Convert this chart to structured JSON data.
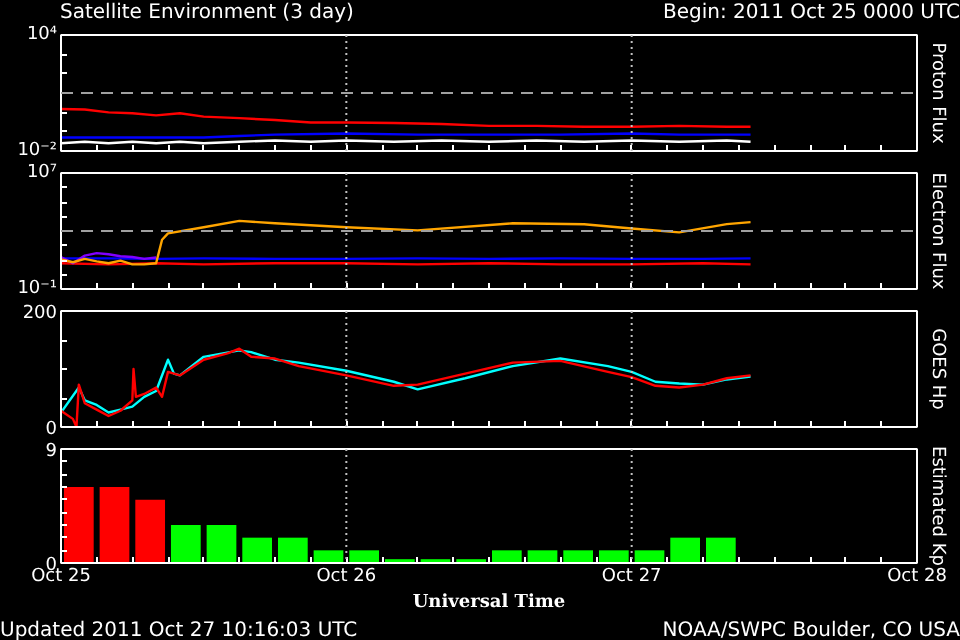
{
  "chart_data": [
    {
      "type": "line",
      "title": "Satellite Environment (3 day)",
      "subtitle": "Begin:  2011 Oct 25 0000 UTC",
      "ylabel": "Proton Flux",
      "log": "y",
      "tick_labels": "y",
      "grid": false,
      "xlim": [
        "2011-10-25T00:00",
        "2011-10-28T00:00"
      ],
      "xticks": [
        {
          "value": "2011-10-25T00:00",
          "label": null
        },
        {
          "value": "2011-10-25T03:00",
          "label": null
        },
        {
          "value": "2011-10-25T06:00",
          "label": null
        },
        {
          "value": "2011-10-25T09:00",
          "label": null
        },
        {
          "value": "2011-10-25T12:00",
          "label": null
        },
        {
          "value": "2011-10-25T15:00",
          "label": null
        },
        {
          "value": "2011-10-25T18:00",
          "label": null
        },
        {
          "value": "2011-10-25T21:00",
          "label": null
        },
        {
          "value": "2011-10-26T00:00",
          "label": null
        },
        {
          "value": "2011-10-26T03:00",
          "label": null
        },
        {
          "value": "2011-10-26T06:00",
          "label": null
        },
        {
          "value": "2011-10-26T09:00",
          "label": null
        },
        {
          "value": "2011-10-26T12:00",
          "label": null
        },
        {
          "value": "2011-10-26T15:00",
          "label": null
        },
        {
          "value": "2011-10-26T18:00",
          "label": null
        },
        {
          "value": "2011-10-26T21:00",
          "label": null
        },
        {
          "value": "2011-10-27T00:00",
          "label": null
        },
        {
          "value": "2011-10-27T03:00",
          "label": null
        },
        {
          "value": "2011-10-27T06:00",
          "label": null
        },
        {
          "value": "2011-10-27T09:00",
          "label": null
        },
        {
          "value": "2011-10-27T12:00",
          "label": null
        },
        {
          "value": "2011-10-27T15:00",
          "label": null
        },
        {
          "value": "2011-10-27T18:00",
          "label": null
        },
        {
          "value": "2011-10-27T21:00",
          "label": null
        },
        {
          "value": "2011-10-28T00:00",
          "label": null
        }
      ],
      "ylim": [
        0.01,
        10000
      ],
      "yticks": [
        {
          "value": 0.01,
          "label": "10⁻²"
        },
        {
          "value": 0.1,
          "label": null
        },
        {
          "value": 1,
          "label": null
        },
        {
          "value": 10,
          "label": null
        },
        {
          "value": 100,
          "label": null
        },
        {
          "value": 1000,
          "label": null
        },
        {
          "value": 10000,
          "label": "10⁴"
        }
      ],
      "ref_lines": [
        {
          "axis": "y",
          "value": 10,
          "color": "#a0a0a0",
          "line_style": "dashed"
        },
        {
          "axis": "x",
          "value": "2011-10-26T00:00",
          "color": "#c0c0c0",
          "line_style": "dotted"
        },
        {
          "axis": "x",
          "value": "2011-10-27T00:00",
          "color": "#c0c0c0",
          "line_style": "dotted"
        }
      ],
      "series": [
        {
          "color": "#ffffff",
          "x": [
            "2011-10-25T00:00",
            "2011-10-25T02:00",
            "2011-10-25T04:00",
            "2011-10-25T06:00",
            "2011-10-25T08:00",
            "2011-10-25T10:00",
            "2011-10-25T12:00",
            "2011-10-25T15:00",
            "2011-10-25T18:00",
            "2011-10-25T21:00",
            "2011-10-26T00:00",
            "2011-10-26T04:00",
            "2011-10-26T08:00",
            "2011-10-26T12:00",
            "2011-10-26T16:00",
            "2011-10-26T20:00",
            "2011-10-27T00:00",
            "2011-10-27T04:00",
            "2011-10-27T08:00",
            "2011-10-27T10:00"
          ],
          "values": [
            0.025,
            0.03,
            0.025,
            0.03,
            0.025,
            0.03,
            0.025,
            0.03,
            0.035,
            0.03,
            0.035,
            0.03,
            0.035,
            0.03,
            0.035,
            0.03,
            0.035,
            0.03,
            0.035,
            0.03
          ]
        },
        {
          "color": "#0000ff",
          "x": [
            "2011-10-25T00:00",
            "2011-10-25T06:00",
            "2011-10-25T12:00",
            "2011-10-25T15:00",
            "2011-10-25T18:00",
            "2011-10-26T00:00",
            "2011-10-26T06:00",
            "2011-10-26T12:00",
            "2011-10-26T18:00",
            "2011-10-27T00:00",
            "2011-10-27T04:00",
            "2011-10-27T10:00"
          ],
          "values": [
            0.05,
            0.05,
            0.05,
            0.06,
            0.07,
            0.08,
            0.07,
            0.07,
            0.07,
            0.08,
            0.07,
            0.07
          ]
        },
        {
          "color": "#ff0000",
          "x": [
            "2011-10-25T00:00",
            "2011-10-25T02:00",
            "2011-10-25T04:00",
            "2011-10-25T06:00",
            "2011-10-25T08:00",
            "2011-10-25T10:00",
            "2011-10-25T12:00",
            "2011-10-25T15:00",
            "2011-10-25T18:00",
            "2011-10-25T21:00",
            "2011-10-26T00:00",
            "2011-10-26T04:00",
            "2011-10-26T08:00",
            "2011-10-26T12:00",
            "2011-10-26T16:00",
            "2011-10-26T20:00",
            "2011-10-27T00:00",
            "2011-10-27T04:00",
            "2011-10-27T08:00",
            "2011-10-27T10:00"
          ],
          "values": [
            1.5,
            1.4,
            1.0,
            0.9,
            0.7,
            0.9,
            0.6,
            0.5,
            0.4,
            0.3,
            0.3,
            0.28,
            0.25,
            0.2,
            0.2,
            0.18,
            0.18,
            0.2,
            0.18,
            0.18
          ]
        }
      ]
    },
    {
      "type": "line",
      "ylabel": "Electron Flux",
      "log": "y",
      "tick_labels": "y",
      "grid": false,
      "xlim": [
        "2011-10-25T00:00",
        "2011-10-28T00:00"
      ],
      "xticks": [
        {
          "value": "2011-10-25T00:00",
          "label": null
        },
        {
          "value": "2011-10-25T03:00",
          "label": null
        },
        {
          "value": "2011-10-25T06:00",
          "label": null
        },
        {
          "value": "2011-10-25T09:00",
          "label": null
        },
        {
          "value": "2011-10-25T12:00",
          "label": null
        },
        {
          "value": "2011-10-25T15:00",
          "label": null
        },
        {
          "value": "2011-10-25T18:00",
          "label": null
        },
        {
          "value": "2011-10-25T21:00",
          "label": null
        },
        {
          "value": "2011-10-26T00:00",
          "label": null
        },
        {
          "value": "2011-10-26T03:00",
          "label": null
        },
        {
          "value": "2011-10-26T06:00",
          "label": null
        },
        {
          "value": "2011-10-26T09:00",
          "label": null
        },
        {
          "value": "2011-10-26T12:00",
          "label": null
        },
        {
          "value": "2011-10-26T15:00",
          "label": null
        },
        {
          "value": "2011-10-26T18:00",
          "label": null
        },
        {
          "value": "2011-10-26T21:00",
          "label": null
        },
        {
          "value": "2011-10-27T00:00",
          "label": null
        },
        {
          "value": "2011-10-27T03:00",
          "label": null
        },
        {
          "value": "2011-10-27T06:00",
          "label": null
        },
        {
          "value": "2011-10-27T09:00",
          "label": null
        },
        {
          "value": "2011-10-27T12:00",
          "label": null
        },
        {
          "value": "2011-10-27T15:00",
          "label": null
        },
        {
          "value": "2011-10-27T18:00",
          "label": null
        },
        {
          "value": "2011-10-27T21:00",
          "label": null
        },
        {
          "value": "2011-10-28T00:00",
          "label": null
        }
      ],
      "ylim": [
        0.1,
        10000000
      ],
      "yticks": [
        {
          "value": 0.1,
          "label": "10⁻¹"
        },
        {
          "value": 1,
          "label": null
        },
        {
          "value": 10,
          "label": null
        },
        {
          "value": 100,
          "label": null
        },
        {
          "value": 1000,
          "label": null
        },
        {
          "value": 10000,
          "label": null
        },
        {
          "value": 100000,
          "label": null
        },
        {
          "value": 1000000,
          "label": null
        },
        {
          "value": 10000000,
          "label": "10⁷"
        }
      ],
      "ref_lines": [
        {
          "axis": "y",
          "value": 1000,
          "color": "#a0a0a0",
          "line_style": "dashed"
        },
        {
          "axis": "x",
          "value": "2011-10-26T00:00",
          "color": "#c0c0c0",
          "line_style": "dotted"
        },
        {
          "axis": "x",
          "value": "2011-10-27T00:00",
          "color": "#c0c0c0",
          "line_style": "dotted"
        }
      ],
      "series": [
        {
          "color": "#0000ff",
          "x": [
            "2011-10-25T00:00",
            "2011-10-25T04:00",
            "2011-10-25T08:00",
            "2011-10-25T12:00",
            "2011-10-25T18:00",
            "2011-10-26T00:00",
            "2011-10-26T06:00",
            "2011-10-26T12:00",
            "2011-10-26T18:00",
            "2011-10-27T00:00",
            "2011-10-27T06:00",
            "2011-10-27T10:00"
          ],
          "values": [
            13,
            13,
            12,
            13,
            12,
            12,
            13,
            12,
            13,
            12,
            12,
            13
          ]
        },
        {
          "color": "#ff0000",
          "x": [
            "2011-10-25T00:00",
            "2011-10-25T04:00",
            "2011-10-25T08:00",
            "2011-10-25T12:00",
            "2011-10-25T18:00",
            "2011-10-26T00:00",
            "2011-10-26T06:00",
            "2011-10-26T12:00",
            "2011-10-26T18:00",
            "2011-10-27T00:00",
            "2011-10-27T06:00",
            "2011-10-27T10:00"
          ],
          "values": [
            6,
            5,
            6,
            5,
            6,
            6,
            5,
            6,
            5,
            5,
            6,
            5
          ]
        },
        {
          "color": "#8000ff",
          "x": [
            "2011-10-25T00:00",
            "2011-10-25T01:00",
            "2011-10-25T02:00",
            "2011-10-25T03:00",
            "2011-10-25T04:00",
            "2011-10-25T05:00",
            "2011-10-25T06:00",
            "2011-10-25T07:00",
            "2011-10-25T08:00"
          ],
          "values": [
            16,
            6,
            20,
            30,
            25,
            18,
            16,
            12,
            15
          ]
        },
        {
          "color": "#ffa500",
          "x": [
            "2011-10-25T00:00",
            "2011-10-25T01:00",
            "2011-10-25T02:00",
            "2011-10-25T03:00",
            "2011-10-25T04:00",
            "2011-10-25T05:00",
            "2011-10-25T06:00",
            "2011-10-25T07:00",
            "2011-10-25T08:00",
            "2011-10-25T08:30",
            "2011-10-25T09:00",
            "2011-10-25T12:00",
            "2011-10-25T15:00",
            "2011-10-25T18:00",
            "2011-10-26T00:00",
            "2011-10-26T06:00",
            "2011-10-26T14:00",
            "2011-10-26T20:00",
            "2011-10-27T00:00",
            "2011-10-27T04:00",
            "2011-10-27T08:00",
            "2011-10-27T10:00"
          ],
          "values": [
            11,
            7,
            12,
            8,
            6,
            9,
            5,
            5,
            6,
            250,
            680,
            1800,
            5000,
            3400,
            1800,
            1100,
            3400,
            2900,
            1500,
            800,
            3000,
            4100
          ]
        }
      ]
    },
    {
      "type": "line",
      "ylabel": "GOES Hp",
      "tick_labels": "y",
      "grid": false,
      "xlim": [
        "2011-10-25T00:00",
        "2011-10-28T00:00"
      ],
      "xticks": [
        {
          "value": "2011-10-25T00:00",
          "label": null
        },
        {
          "value": "2011-10-25T03:00",
          "label": null
        },
        {
          "value": "2011-10-25T06:00",
          "label": null
        },
        {
          "value": "2011-10-25T09:00",
          "label": null
        },
        {
          "value": "2011-10-25T12:00",
          "label": null
        },
        {
          "value": "2011-10-25T15:00",
          "label": null
        },
        {
          "value": "2011-10-25T18:00",
          "label": null
        },
        {
          "value": "2011-10-25T21:00",
          "label": null
        },
        {
          "value": "2011-10-26T00:00",
          "label": null
        },
        {
          "value": "2011-10-26T03:00",
          "label": null
        },
        {
          "value": "2011-10-26T06:00",
          "label": null
        },
        {
          "value": "2011-10-26T09:00",
          "label": null
        },
        {
          "value": "2011-10-26T12:00",
          "label": null
        },
        {
          "value": "2011-10-26T15:00",
          "label": null
        },
        {
          "value": "2011-10-26T18:00",
          "label": null
        },
        {
          "value": "2011-10-26T21:00",
          "label": null
        },
        {
          "value": "2011-10-27T00:00",
          "label": null
        },
        {
          "value": "2011-10-27T03:00",
          "label": null
        },
        {
          "value": "2011-10-27T06:00",
          "label": null
        },
        {
          "value": "2011-10-27T09:00",
          "label": null
        },
        {
          "value": "2011-10-27T12:00",
          "label": null
        },
        {
          "value": "2011-10-27T15:00",
          "label": null
        },
        {
          "value": "2011-10-27T18:00",
          "label": null
        },
        {
          "value": "2011-10-27T21:00",
          "label": null
        },
        {
          "value": "2011-10-28T00:00",
          "label": null
        }
      ],
      "ylim": [
        0,
        200
      ],
      "yticks": [
        0,
        {
          "value": 50,
          "label": null
        },
        {
          "value": 100,
          "label": null
        },
        {
          "value": 150,
          "label": null
        },
        200
      ],
      "ref_lines": [
        {
          "axis": "x",
          "value": "2011-10-26T00:00",
          "color": "#c0c0c0",
          "line_style": "dotted"
        },
        {
          "axis": "x",
          "value": "2011-10-27T00:00",
          "color": "#c0c0c0",
          "line_style": "dotted"
        }
      ],
      "series": [
        {
          "color": "#00ffff",
          "x": [
            "2011-10-25T00:00",
            "2011-10-25T01:30",
            "2011-10-25T02:00",
            "2011-10-25T03:00",
            "2011-10-25T04:00",
            "2011-10-25T05:00",
            "2011-10-25T06:00",
            "2011-10-25T07:00",
            "2011-10-25T08:00",
            "2011-10-25T09:00",
            "2011-10-25T09:30",
            "2011-10-25T10:00",
            "2011-10-25T12:00",
            "2011-10-25T15:00",
            "2011-10-25T16:00",
            "2011-10-25T18:00",
            "2011-10-25T20:00",
            "2011-10-26T00:00",
            "2011-10-26T04:00",
            "2011-10-26T06:00",
            "2011-10-26T10:00",
            "2011-10-26T14:00",
            "2011-10-26T18:00",
            "2011-10-26T22:00",
            "2011-10-27T00:00",
            "2011-10-27T02:00",
            "2011-10-27T04:00",
            "2011-10-27T06:00",
            "2011-10-27T08:00",
            "2011-10-27T10:00"
          ],
          "values": [
            25,
            68,
            46,
            38,
            25,
            30,
            35,
            52,
            62,
            116,
            92,
            89,
            121,
            132,
            129,
            116,
            111,
            97,
            78,
            65,
            84,
            105,
            118,
            105,
            95,
            78,
            75,
            73,
            82,
            87
          ]
        },
        {
          "color": "#ff0000",
          "x": [
            "2011-10-25T00:00",
            "2011-10-25T01:00",
            "2011-10-25T01:18",
            "2011-10-25T01:30",
            "2011-10-25T02:00",
            "2011-10-25T03:00",
            "2011-10-25T04:00",
            "2011-10-25T05:00",
            "2011-10-25T06:00",
            "2011-10-25T06:06",
            "2011-10-25T06:18",
            "2011-10-25T07:00",
            "2011-10-25T08:00",
            "2011-10-25T08:30",
            "2011-10-25T09:00",
            "2011-10-25T10:00",
            "2011-10-25T12:00",
            "2011-10-25T14:00",
            "2011-10-25T15:00",
            "2011-10-25T16:00",
            "2011-10-25T18:00",
            "2011-10-25T20:00",
            "2011-10-26T00:00",
            "2011-10-26T04:00",
            "2011-10-26T06:00",
            "2011-10-26T10:00",
            "2011-10-26T14:00",
            "2011-10-26T18:00",
            "2011-10-26T22:00",
            "2011-10-27T00:00",
            "2011-10-27T02:00",
            "2011-10-27T04:00",
            "2011-10-27T06:00",
            "2011-10-27T08:00",
            "2011-10-27T10:00"
          ],
          "values": [
            28,
            14,
            0,
            73,
            41,
            30,
            19,
            28,
            46,
            100,
            52,
            57,
            68,
            52,
            95,
            89,
            116,
            127,
            135,
            121,
            118,
            105,
            89,
            71,
            73,
            92,
            111,
            114,
            95,
            86,
            71,
            68,
            73,
            84,
            89
          ]
        }
      ]
    },
    {
      "type": "bar",
      "ylabel": "Estimated Kp",
      "xlabel": "Universal Time",
      "grid": false,
      "annotations": [
        "Updated 2011 Oct 27 10:16:03 UTC",
        "NOAA/SWPC Boulder, CO USA"
      ],
      "xlim": [
        "2011-10-25T00:00",
        "2011-10-28T00:00"
      ],
      "xticks": [
        {
          "value": "2011-10-25T00:00",
          "label": "Oct 25"
        },
        {
          "value": "2011-10-25T03:00",
          "label": null
        },
        {
          "value": "2011-10-25T06:00",
          "label": null
        },
        {
          "value": "2011-10-25T09:00",
          "label": null
        },
        {
          "value": "2011-10-25T12:00",
          "label": null
        },
        {
          "value": "2011-10-25T15:00",
          "label": null
        },
        {
          "value": "2011-10-25T18:00",
          "label": null
        },
        {
          "value": "2011-10-25T21:00",
          "label": null
        },
        {
          "value": "2011-10-26T00:00",
          "label": "Oct 26"
        },
        {
          "value": "2011-10-26T03:00",
          "label": null
        },
        {
          "value": "2011-10-26T06:00",
          "label": null
        },
        {
          "value": "2011-10-26T09:00",
          "label": null
        },
        {
          "value": "2011-10-26T12:00",
          "label": null
        },
        {
          "value": "2011-10-26T15:00",
          "label": null
        },
        {
          "value": "2011-10-26T18:00",
          "label": null
        },
        {
          "value": "2011-10-26T21:00",
          "label": null
        },
        {
          "value": "2011-10-27T00:00",
          "label": "Oct 27"
        },
        {
          "value": "2011-10-27T03:00",
          "label": null
        },
        {
          "value": "2011-10-27T06:00",
          "label": null
        },
        {
          "value": "2011-10-27T09:00",
          "label": null
        },
        {
          "value": "2011-10-27T12:00",
          "label": null
        },
        {
          "value": "2011-10-27T15:00",
          "label": null
        },
        {
          "value": "2011-10-27T18:00",
          "label": null
        },
        {
          "value": "2011-10-27T21:00",
          "label": null
        },
        {
          "value": "2011-10-28T00:00",
          "label": "Oct 28"
        }
      ],
      "ylim": [
        0,
        9
      ],
      "yticks": [
        0,
        {
          "value": 1,
          "label": null
        },
        {
          "value": 2,
          "label": null
        },
        {
          "value": 3,
          "label": null
        },
        {
          "value": 4,
          "label": null
        },
        {
          "value": 5,
          "label": null
        },
        {
          "value": 6,
          "label": null
        },
        {
          "value": 7,
          "label": null
        },
        {
          "value": 8,
          "label": null
        },
        9
      ],
      "ref_lines": [
        {
          "axis": "x",
          "value": "2011-10-26T00:00",
          "color": "#c0c0c0",
          "line_style": "dotted"
        },
        {
          "axis": "x",
          "value": "2011-10-27T00:00",
          "color": "#c0c0c0",
          "line_style": "dotted"
        }
      ],
      "x": [
        "2011-10-25T01:30",
        "2011-10-25T04:30",
        "2011-10-25T07:30",
        "2011-10-25T10:30",
        "2011-10-25T13:30",
        "2011-10-25T16:30",
        "2011-10-25T19:30",
        "2011-10-25T22:30",
        "2011-10-26T01:30",
        "2011-10-26T04:30",
        "2011-10-26T07:30",
        "2011-10-26T10:30",
        "2011-10-26T13:30",
        "2011-10-26T16:30",
        "2011-10-26T19:30",
        "2011-10-26T22:30",
        "2011-10-27T01:30",
        "2011-10-27T04:30",
        "2011-10-27T07:30"
      ],
      "values": [
        6,
        6,
        5,
        3,
        3,
        2,
        2,
        1,
        1,
        0.3,
        0.3,
        0.3,
        1,
        1,
        1,
        1,
        1,
        2,
        2
      ],
      "colors": [
        "#ff0000",
        "#ff0000",
        "#ff0000",
        "#00ff00",
        "#00ff00",
        "#00ff00",
        "#00ff00",
        "#00ff00",
        "#00ff00",
        "#00ff00",
        "#00ff00",
        "#00ff00",
        "#00ff00",
        "#00ff00",
        "#00ff00",
        "#00ff00",
        "#00ff00",
        "#00ff00",
        "#00ff00"
      ]
    }
  ]
}
